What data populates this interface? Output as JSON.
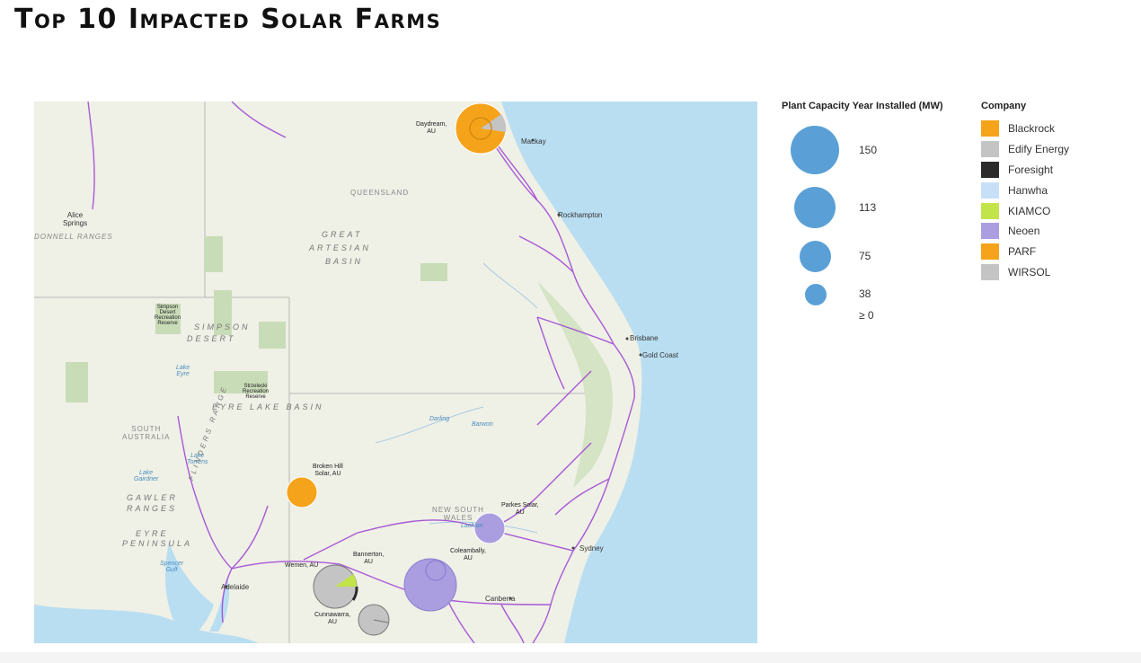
{
  "title": "Top 10 Impacted Solar Farms",
  "map": {
    "labels": {
      "queensland": "QUEENSLAND",
      "alice_springs": "Alice\nSprings",
      "macdonnell": "DONNELL RANGES",
      "great_artesian_1": "GREAT",
      "great_artesian_2": "ARTESIAN",
      "great_artesian_3": "BASIN",
      "simpson_1": "SIMPSON",
      "simpson_2": "DESERT",
      "simpson_reserve": "Simpson\nDesert\nRecreation\nReserve",
      "lake_eyre": "Lake\nEyre",
      "strzelecki": "Strzelecki\nRecreation\nReserve",
      "eyre_lake_basin": "EYRE LAKE BASIN",
      "south_australia": "SOUTH\nAUSTRALIA",
      "lake_torrens": "Lake\nTorrens",
      "lake_gairdner": "Lake\nGairdner",
      "gawler_1": "GAWLER",
      "gawler_2": "RANGES",
      "eyre_pen_1": "EYRE",
      "eyre_pen_2": "PENINSULA",
      "spencer_gulf": "Spencer\nGulf",
      "flinders": "FLINDERS RANGE",
      "new_south_wales": "NEW SOUTH\nWALES",
      "darling": "Darling",
      "barwon": "Barwon",
      "lachlan": "Lachlan",
      "mackay": "Mackay",
      "rockhampton": "Rockhampton",
      "brisbane": "Brisbane",
      "gold_coast": "Gold Coast",
      "sydney": "Sydney",
      "canberra": "Canberra",
      "adelaide": "Adelaide"
    },
    "farms": [
      {
        "name": "Daydream,\nAU",
        "company": "Blackrock",
        "capacity": 150
      },
      {
        "name": "Broken Hill\nSolar, AU",
        "company": "PARF",
        "capacity": 53
      },
      {
        "name": "Parkes Solar,\nAU",
        "company": "Neoen",
        "capacity": 55
      },
      {
        "name": "Coleambally,\nAU",
        "company": "Neoen",
        "capacity": 150
      },
      {
        "name": "Bannerton,\nAU",
        "company": "Edify Energy",
        "capacity": 110
      },
      {
        "name": "Wemen, AU",
        "company": "WIRSOL",
        "capacity": 88
      },
      {
        "name": "Cunnawarra,\nAU",
        "company": "WIRSOL",
        "capacity": 57
      }
    ]
  },
  "legend_capacity": {
    "title": "Plant Capacity Year Installed  (MW)",
    "items": [
      {
        "label": "150",
        "value": 150
      },
      {
        "label": "113",
        "value": 113
      },
      {
        "label": "75",
        "value": 75
      },
      {
        "label": "38",
        "value": 38
      },
      {
        "label": "≥ 0",
        "value": 0
      }
    ]
  },
  "legend_company": {
    "title": "Company",
    "items": [
      {
        "label": "Blackrock",
        "color": "#f5a31a"
      },
      {
        "label": "Edify Energy",
        "color": "#c4c4c4"
      },
      {
        "label": "Foresight",
        "color": "#2b2b2b"
      },
      {
        "label": "Hanwha",
        "color": "#c8e0f7"
      },
      {
        "label": "KIAMCO",
        "color": "#c2e34a"
      },
      {
        "label": "Neoen",
        "color": "#ab9ee0"
      },
      {
        "label": "PARF",
        "color": "#f5a31a"
      },
      {
        "label": "WIRSOL",
        "color": "#c4c4c4"
      }
    ]
  },
  "colors": {
    "ocean": "#b9def2",
    "land": "#eff0e6",
    "powerline": "#9c3fd4",
    "reserve": "#c9dcb8",
    "legend_circle": "#5aa0d6"
  }
}
